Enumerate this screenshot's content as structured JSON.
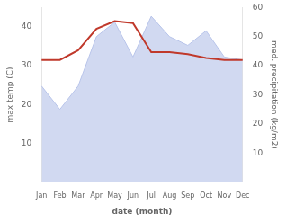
{
  "chart_data": {
    "type": "line",
    "categories": [
      "Jan",
      "Feb",
      "Mar",
      "Apr",
      "May",
      "Jun",
      "Jul",
      "Aug",
      "Sep",
      "Oct",
      "Nov",
      "Dec"
    ],
    "xlabel": "date (month)",
    "ylabel": "max temp (C)",
    "y2label": "med. precipitation (kg/m2)",
    "series": [
      {
        "type": "area",
        "axis": "y2",
        "color": "#b8c4ea",
        "values": [
          33.0,
          25.0,
          33.0,
          50.0,
          55.0,
          43.0,
          57.0,
          50.0,
          47.0,
          52.0,
          43.0,
          42.0
        ]
      },
      {
        "type": "line",
        "color": "#c0392b",
        "values": [
          31.5,
          31.5,
          34.0,
          39.5,
          41.5,
          41.0,
          33.5,
          33.5,
          33.0,
          32.0,
          31.5,
          31.5
        ]
      }
    ],
    "ylim": [
      0,
      45
    ],
    "yticks": [
      10,
      20,
      30,
      40
    ],
    "y2lim": [
      0,
      60
    ],
    "y2ticks": [
      10,
      20,
      30,
      40,
      50,
      60
    ],
    "grid": false
  }
}
